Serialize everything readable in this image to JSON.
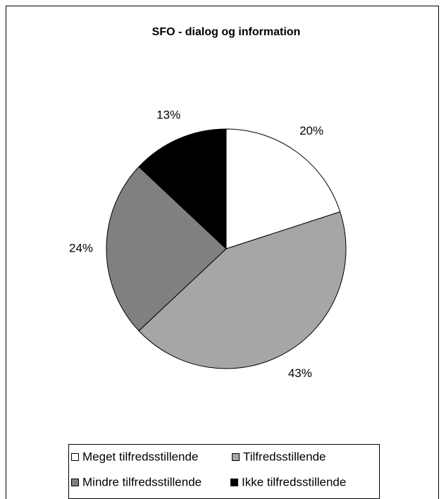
{
  "chart_data": {
    "type": "pie",
    "title": "SFO - dialog og information",
    "categories": [
      "Meget tilfredsstillende",
      "Tilfredsstillende",
      "Mindre tilfredsstillende",
      "Ikke tilfredsstillende"
    ],
    "values": [
      20,
      43,
      24,
      13
    ],
    "value_labels": [
      "20%",
      "43%",
      "24%",
      "13%"
    ],
    "colors": [
      "#ffffff",
      "#a6a6a6",
      "#808080",
      "#000000"
    ],
    "legend": "bottom"
  }
}
